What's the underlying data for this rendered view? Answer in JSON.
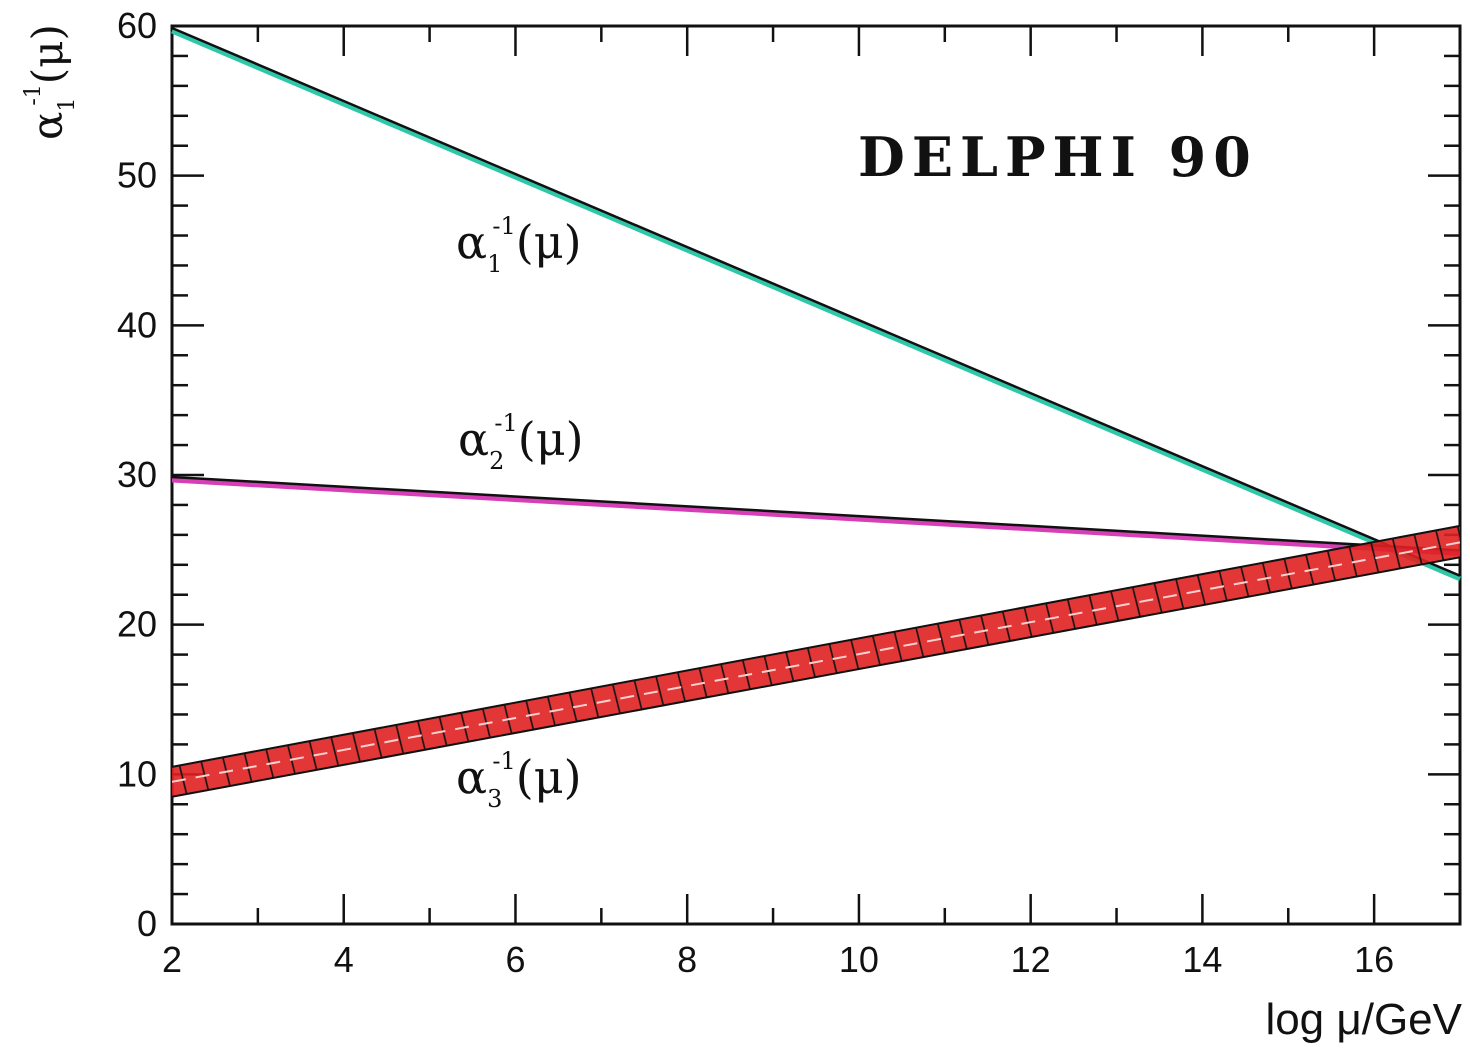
{
  "chart_data": {
    "type": "line",
    "title": "DELPHI 90",
    "xlabel": "log μ/GeV",
    "ylabel": {
      "base": "α",
      "sub": "1",
      "sup": "-1",
      "tail": "(μ)"
    },
    "xlim": [
      2,
      17
    ],
    "ylim": [
      0,
      60
    ],
    "xticks": [
      "2",
      "4",
      "6",
      "8",
      "10",
      "12",
      "14",
      "16"
    ],
    "yticks": [
      "0",
      "10",
      "20",
      "30",
      "40",
      "50",
      "60"
    ],
    "series": [
      {
        "label": {
          "base": "α",
          "sub": "1",
          "sup": "-1",
          "tail": "(μ)"
        },
        "x": [
          2,
          17
        ],
        "y": [
          59.8,
          23.2
        ],
        "color": "#2ec7a8",
        "band": false
      },
      {
        "label": {
          "base": "α",
          "sub": "2",
          "sup": "-1",
          "tail": "(μ)"
        },
        "x": [
          2,
          17
        ],
        "y": [
          29.8,
          24.9
        ],
        "color": "#d63fb6",
        "band": false
      },
      {
        "label": {
          "base": "α",
          "sub": "3",
          "sup": "-1",
          "tail": "(μ)"
        },
        "x": [
          2,
          17
        ],
        "y": [
          9.5,
          25.5
        ],
        "y_low": [
          8.5,
          24.5
        ],
        "y_high": [
          10.5,
          26.6
        ],
        "color": "#e02020",
        "band": true
      }
    ]
  }
}
